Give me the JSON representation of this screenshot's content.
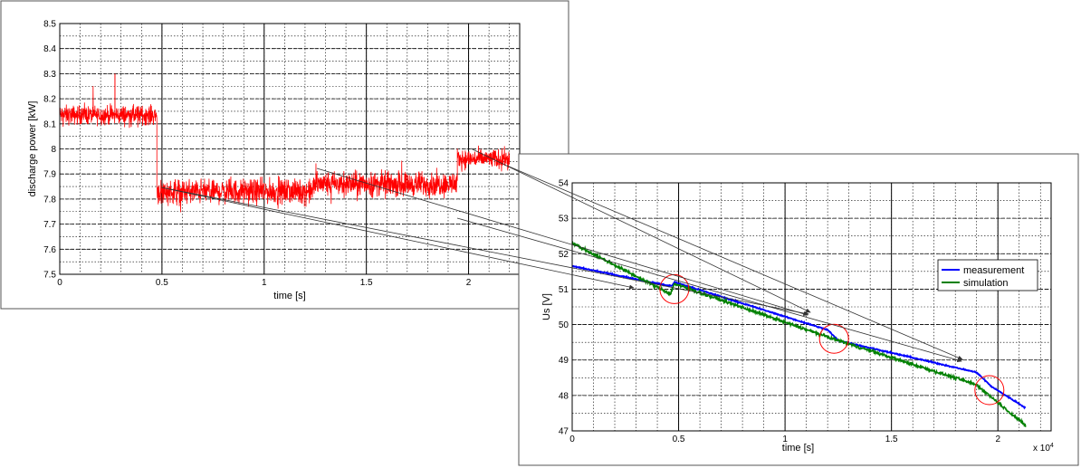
{
  "chart_data": [
    {
      "type": "line",
      "title": "",
      "xlabel": "time [s]",
      "ylabel": "discharge power [kW]",
      "xlim": [
        0,
        2.25
      ],
      "ylim": [
        7.5,
        8.5
      ],
      "xticks": [
        "0",
        "0.5",
        "1",
        "1.5",
        "2"
      ],
      "xtick_values": [
        0,
        0.5,
        1,
        1.5,
        2
      ],
      "yticks": [
        "7.5",
        "7.6",
        "7.7",
        "7.8",
        "7.9",
        "8",
        "8.1",
        "8.2",
        "8.3",
        "8.4",
        "8.5"
      ],
      "ytick_values": [
        7.5,
        7.6,
        7.7,
        7.8,
        7.9,
        8.0,
        8.1,
        8.2,
        8.3,
        8.4,
        8.5
      ],
      "grid": true,
      "series": [
        {
          "color": "#ff0000",
          "segments": [
            {
              "x_start": 0.0,
              "x_end": 0.475,
              "mean": 8.135,
              "noise": 0.035
            },
            {
              "x_start": 0.475,
              "x_end": 1.24,
              "mean": 7.83,
              "noise": 0.045
            },
            {
              "x_start": 1.24,
              "x_end": 1.945,
              "mean": 7.86,
              "noise": 0.045
            },
            {
              "x_start": 1.945,
              "x_end": 2.2,
              "mean": 7.96,
              "noise": 0.035
            }
          ],
          "spikes": [
            {
              "x": 0.27,
              "y": 8.3
            }
          ]
        }
      ]
    },
    {
      "type": "line",
      "title": "",
      "xlabel": "time [s]",
      "ylabel": "Us [V]",
      "xlim": [
        0,
        2.25
      ],
      "ylim": [
        47,
        54
      ],
      "x_multiplier": "x 10",
      "x_multiplier_exp": "4",
      "xticks": [
        "0",
        "0.5",
        "1",
        "1.5",
        "2"
      ],
      "xtick_values": [
        0,
        0.5,
        1,
        1.5,
        2
      ],
      "yticks": [
        "47",
        "48",
        "49",
        "50",
        "51",
        "52",
        "53",
        "54"
      ],
      "ytick_values": [
        47,
        48,
        49,
        50,
        51,
        52,
        53,
        54
      ],
      "grid": true,
      "legend_position": "right",
      "series": [
        {
          "name": "measurement",
          "color": "#0000ff",
          "points": [
            [
              0,
              51.65
            ],
            [
              0.45,
              51.1
            ],
            [
              0.47,
              51.1
            ],
            [
              0.48,
              51.2
            ],
            [
              1.2,
              49.85
            ],
            [
              1.25,
              49.55
            ],
            [
              1.9,
              48.65
            ],
            [
              1.97,
              48.25
            ],
            [
              2.13,
              47.65
            ]
          ]
        },
        {
          "name": "simulation",
          "color": "#008000",
          "points": [
            [
              0,
              52.3
            ],
            [
              0.45,
              50.9
            ],
            [
              0.46,
              50.85
            ],
            [
              0.48,
              51.15
            ],
            [
              1.2,
              49.65
            ],
            [
              1.25,
              49.55
            ],
            [
              1.9,
              48.3
            ],
            [
              2.13,
              47.15
            ]
          ]
        }
      ],
      "annotations": [
        {
          "type": "circle",
          "x": 0.48,
          "y": 51.0,
          "color": "#ff0000"
        },
        {
          "type": "circle",
          "x": 1.23,
          "y": 49.6,
          "color": "#ff0000"
        },
        {
          "type": "circle",
          "x": 1.96,
          "y": 48.15,
          "color": "#ff0000"
        }
      ]
    }
  ]
}
